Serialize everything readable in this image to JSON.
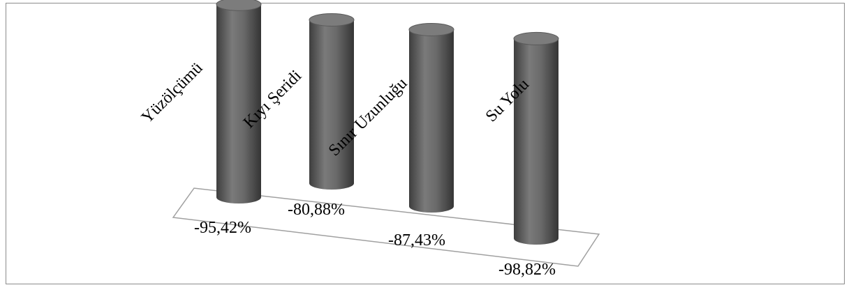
{
  "chart_data": {
    "type": "bar",
    "style": "3d-cylinder",
    "categories": [
      "Yüzölçümü",
      "Kıyı Şeridi",
      "Sınır Uzunluğu",
      "Su Yolu"
    ],
    "values": [
      -95.42,
      -80.88,
      -87.43,
      -98.82
    ],
    "value_labels": [
      "-95,42%",
      "-80,88%",
      "-87,43%",
      "-98,82%"
    ],
    "unit": "%",
    "title": "",
    "xlabel": "",
    "ylabel": "",
    "grid": false,
    "legend": "none"
  },
  "colors": {
    "bar": "#6b6b6b",
    "bar_top": "#7c7c7c",
    "floor_line": "#a0a0a0",
    "frame": "#8c8c8c"
  }
}
